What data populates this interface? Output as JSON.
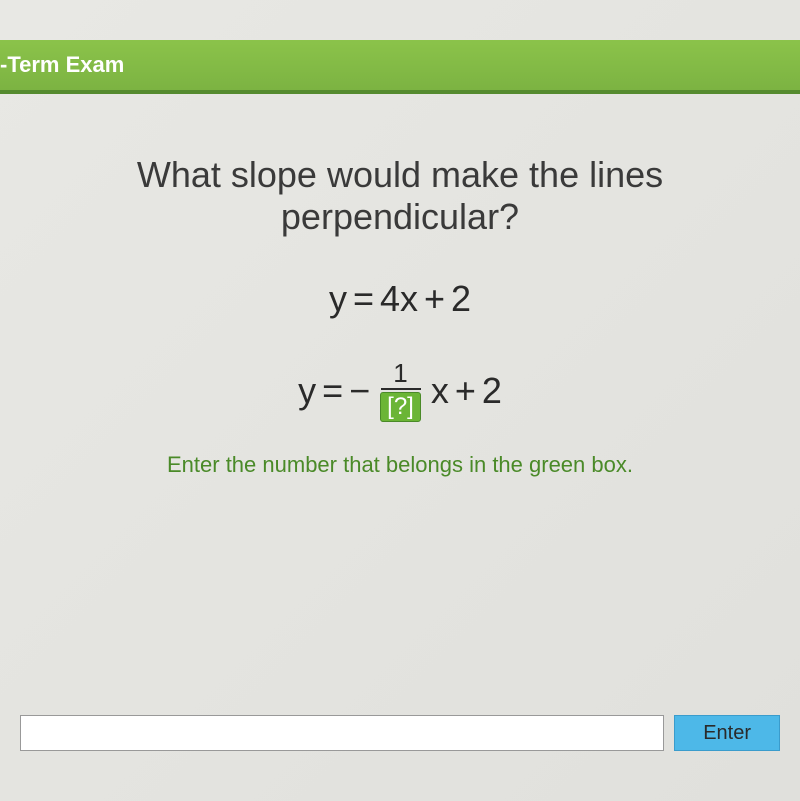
{
  "header": {
    "title": "-Term Exam"
  },
  "question": {
    "line1": "What slope would make the lines",
    "line2": "perpendicular?"
  },
  "equations": {
    "eq1_lhs": "y",
    "eq1_eq": "=",
    "eq1_rhs_coef": "4x",
    "eq1_rhs_op": "+",
    "eq1_rhs_const": "2",
    "eq2_lhs": "y",
    "eq2_eq": "=",
    "eq2_neg": "−",
    "eq2_numerator": "1",
    "eq2_denominator": "[?]",
    "eq2_var": "x",
    "eq2_op": "+",
    "eq2_const": "2"
  },
  "hint": "Enter the number that belongs in the green box.",
  "input": {
    "value": "",
    "placeholder": ""
  },
  "button": {
    "enter_label": "Enter"
  },
  "colors": {
    "header_bg": "#7cb342",
    "header_border": "#558b2f",
    "answer_box_bg": "#6bb536",
    "hint_color": "#4a8a28",
    "enter_btn_bg": "#4db8e8",
    "body_bg": "#e4e4e0",
    "text_color": "#3a3a3a"
  }
}
